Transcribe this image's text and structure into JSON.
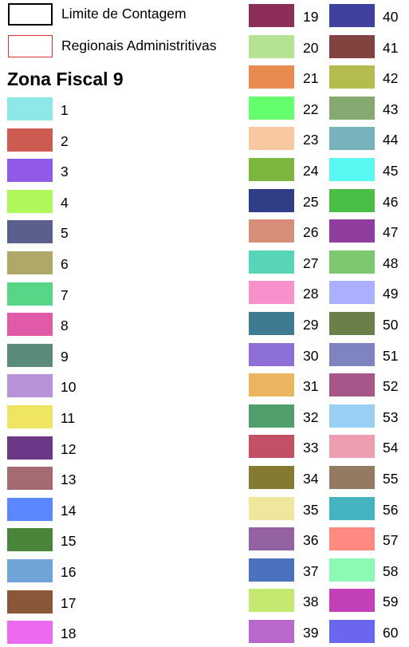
{
  "legend": {
    "limit": {
      "label": "Limite de Contagem",
      "border_color": "#000000"
    },
    "regional": {
      "label": "Regionais Administritivas",
      "border_color": "#d93030"
    }
  },
  "title": "Zona Fiscal 9",
  "zones": [
    {
      "label": "1",
      "color": "#8fe8e8"
    },
    {
      "label": "2",
      "color": "#cc5c52"
    },
    {
      "label": "3",
      "color": "#925ae8"
    },
    {
      "label": "4",
      "color": "#b0f75c"
    },
    {
      "label": "5",
      "color": "#5a5f8e"
    },
    {
      "label": "6",
      "color": "#b0a868"
    },
    {
      "label": "7",
      "color": "#58d688"
    },
    {
      "label": "8",
      "color": "#e05aa8"
    },
    {
      "label": "9",
      "color": "#598a7a"
    },
    {
      "label": "10",
      "color": "#b993d8"
    },
    {
      "label": "11",
      "color": "#f0e562"
    },
    {
      "label": "12",
      "color": "#6b3787"
    },
    {
      "label": "13",
      "color": "#a56b73"
    },
    {
      "label": "14",
      "color": "#5b88ff"
    },
    {
      "label": "15",
      "color": "#49853b"
    },
    {
      "label": "16",
      "color": "#70a4d8"
    },
    {
      "label": "17",
      "color": "#8a5838"
    },
    {
      "label": "18",
      "color": "#ec6af0"
    },
    {
      "label": "19",
      "color": "#8c2d5a"
    },
    {
      "label": "20",
      "color": "#b4e394"
    },
    {
      "label": "21",
      "color": "#e98a50"
    },
    {
      "label": "22",
      "color": "#65ff6d"
    },
    {
      "label": "23",
      "color": "#f8c8a3"
    },
    {
      "label": "24",
      "color": "#7db63c"
    },
    {
      "label": "25",
      "color": "#2f3e86"
    },
    {
      "label": "26",
      "color": "#d68e78"
    },
    {
      "label": "27",
      "color": "#58d4b8"
    },
    {
      "label": "28",
      "color": "#f890cb"
    },
    {
      "label": "29",
      "color": "#3f7a93"
    },
    {
      "label": "30",
      "color": "#8e6fd6"
    },
    {
      "label": "31",
      "color": "#ebb560"
    },
    {
      "label": "32",
      "color": "#4f9e6c"
    },
    {
      "label": "33",
      "color": "#c45066"
    },
    {
      "label": "34",
      "color": "#857a31"
    },
    {
      "label": "35",
      "color": "#eee79c"
    },
    {
      "label": "36",
      "color": "#9461a3"
    },
    {
      "label": "37",
      "color": "#4a72bf"
    },
    {
      "label": "38",
      "color": "#c5e870"
    },
    {
      "label": "39",
      "color": "#b868cc"
    },
    {
      "label": "40",
      "color": "#40409e"
    },
    {
      "label": "41",
      "color": "#804340"
    },
    {
      "label": "42",
      "color": "#b3bc4c"
    },
    {
      "label": "43",
      "color": "#85a970"
    },
    {
      "label": "44",
      "color": "#78b3bb"
    },
    {
      "label": "45",
      "color": "#59f8f3"
    },
    {
      "label": "46",
      "color": "#4bbe47"
    },
    {
      "label": "47",
      "color": "#913c9f"
    },
    {
      "label": "48",
      "color": "#7ec870"
    },
    {
      "label": "49",
      "color": "#aab0fd"
    },
    {
      "label": "50",
      "color": "#6a804a"
    },
    {
      "label": "51",
      "color": "#7d84c0"
    },
    {
      "label": "52",
      "color": "#a7568a"
    },
    {
      "label": "53",
      "color": "#99cef5"
    },
    {
      "label": "54",
      "color": "#ed9eb0"
    },
    {
      "label": "55",
      "color": "#937b62"
    },
    {
      "label": "56",
      "color": "#44b5c0"
    },
    {
      "label": "57",
      "color": "#ff8a82"
    },
    {
      "label": "58",
      "color": "#8cfab3"
    },
    {
      "label": "59",
      "color": "#c340b8"
    },
    {
      "label": "60",
      "color": "#6a66f0"
    }
  ]
}
